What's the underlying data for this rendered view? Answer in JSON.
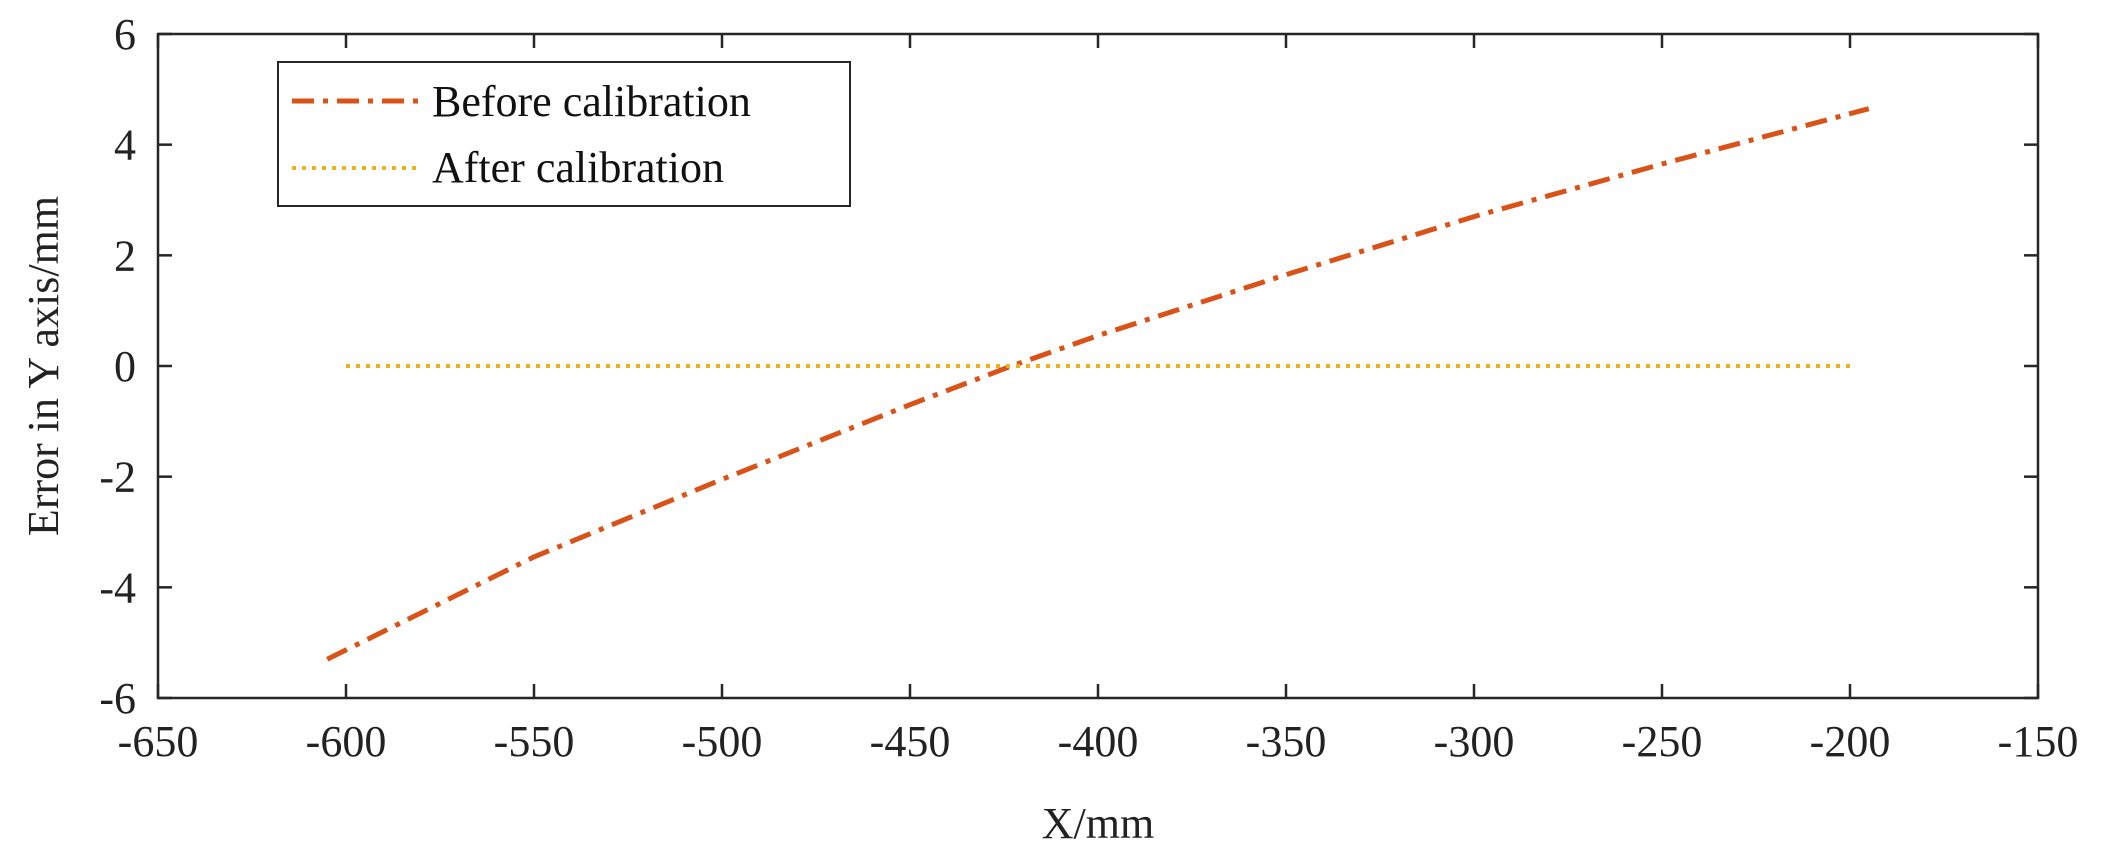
{
  "chart_data": {
    "type": "line",
    "title": "",
    "xlabel": "X/mm",
    "ylabel": "Error in Y axis/mm",
    "xlim": [
      -650,
      -150
    ],
    "ylim": [
      -6,
      6
    ],
    "xticks": [
      -650,
      -600,
      -550,
      -500,
      -450,
      -400,
      -350,
      -300,
      -250,
      -200,
      -150
    ],
    "yticks": [
      -6,
      -4,
      -2,
      0,
      2,
      4,
      6
    ],
    "grid": false,
    "legend_position": "top-left",
    "series": [
      {
        "name": "Before calibration",
        "color": "#D95319",
        "style": "dash-dot",
        "x": [
          -605,
          -550,
          -500,
          -450,
          -423,
          -400,
          -350,
          -300,
          -250,
          -195
        ],
        "y": [
          -5.3,
          -3.45,
          -2.05,
          -0.7,
          0.0,
          0.55,
          1.65,
          2.7,
          3.65,
          4.65
        ]
      },
      {
        "name": "After calibration",
        "color": "#EDB120",
        "style": "dotted",
        "x": [
          -600,
          -550,
          -500,
          -450,
          -400,
          -350,
          -300,
          -250,
          -200
        ],
        "y": [
          0,
          0,
          0,
          0,
          0,
          0,
          0,
          0,
          0
        ]
      }
    ]
  }
}
